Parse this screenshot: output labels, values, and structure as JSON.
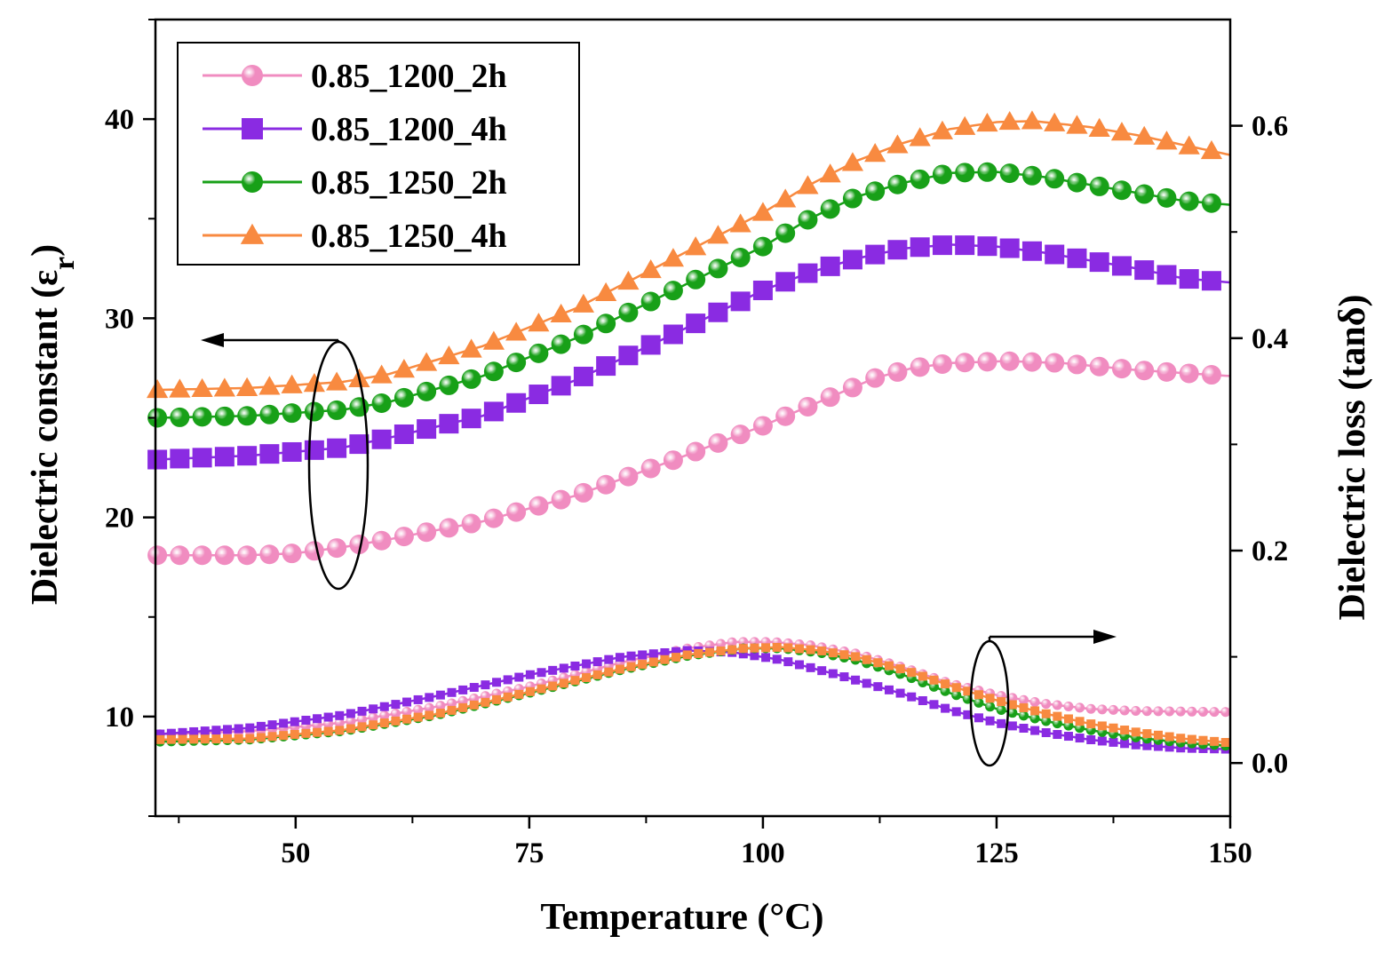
{
  "chart_data": {
    "type": "line",
    "title": "",
    "xlabel": "Temperature (°C)",
    "ylabel": "Dielectric constant (ε",
    "ylabel_sub": "r",
    "ylabel_close": ")",
    "y2label": "Dielectric loss (tanδ)",
    "xlim": [
      35,
      150
    ],
    "ylim": [
      5,
      45
    ],
    "y2lim": [
      -0.05,
      0.7
    ],
    "x_ticks": [
      50,
      75,
      100,
      125,
      150
    ],
    "x_tick_labels": [
      "50",
      "75",
      "100",
      "125",
      "150"
    ],
    "y_ticks": [
      10,
      20,
      30,
      40
    ],
    "y_tick_labels": [
      "10",
      "20",
      "30",
      "40"
    ],
    "y2_ticks": [
      0.0,
      0.2,
      0.4,
      0.6
    ],
    "y2_tick_labels": [
      "0.0",
      "0.2",
      "0.4",
      "0.6"
    ],
    "legend_position": "top-left",
    "series": [
      {
        "name": "0.85_1200_2h",
        "color": "#f08cc0",
        "marker": "circle",
        "eps_points": [
          [
            35,
            18.1
          ],
          [
            45,
            18.1
          ],
          [
            50,
            18.2
          ],
          [
            55,
            18.5
          ],
          [
            60,
            18.9
          ],
          [
            70,
            19.8
          ],
          [
            80,
            21.1
          ],
          [
            90,
            22.8
          ],
          [
            100,
            24.6
          ],
          [
            107,
            26.0
          ],
          [
            112,
            27.0
          ],
          [
            116,
            27.5
          ],
          [
            120,
            27.75
          ],
          [
            126,
            27.85
          ],
          [
            132,
            27.75
          ],
          [
            140,
            27.4
          ],
          [
            150,
            27.1
          ]
        ],
        "loss_points": [
          [
            35,
            0.027
          ],
          [
            45,
            0.03
          ],
          [
            55,
            0.038
          ],
          [
            65,
            0.053
          ],
          [
            75,
            0.072
          ],
          [
            85,
            0.095
          ],
          [
            92,
            0.108
          ],
          [
            97,
            0.114
          ],
          [
            101,
            0.114
          ],
          [
            105,
            0.111
          ],
          [
            110,
            0.103
          ],
          [
            115,
            0.09
          ],
          [
            120,
            0.075
          ],
          [
            125,
            0.064
          ],
          [
            130,
            0.056
          ],
          [
            135,
            0.051
          ],
          [
            140,
            0.049
          ],
          [
            150,
            0.048
          ]
        ]
      },
      {
        "name": "0.85_1200_4h",
        "color": "#8a2be2",
        "marker": "square",
        "eps_points": [
          [
            35,
            22.9
          ],
          [
            45,
            23.1
          ],
          [
            55,
            23.5
          ],
          [
            60,
            24.0
          ],
          [
            70,
            25.1
          ],
          [
            80,
            26.9
          ],
          [
            90,
            29.1
          ],
          [
            100,
            31.4
          ],
          [
            105,
            32.3
          ],
          [
            110,
            33.0
          ],
          [
            115,
            33.5
          ],
          [
            120,
            33.7
          ],
          [
            125,
            33.6
          ],
          [
            130,
            33.3
          ],
          [
            135,
            32.9
          ],
          [
            140,
            32.5
          ],
          [
            145,
            32.0
          ],
          [
            150,
            31.8
          ]
        ],
        "loss_points": [
          [
            35,
            0.027
          ],
          [
            45,
            0.033
          ],
          [
            55,
            0.045
          ],
          [
            65,
            0.063
          ],
          [
            75,
            0.083
          ],
          [
            85,
            0.1
          ],
          [
            92,
            0.106
          ],
          [
            97,
            0.104
          ],
          [
            102,
            0.097
          ],
          [
            108,
            0.083
          ],
          [
            115,
            0.065
          ],
          [
            120,
            0.05
          ],
          [
            125,
            0.038
          ],
          [
            130,
            0.029
          ],
          [
            135,
            0.022
          ],
          [
            140,
            0.017
          ],
          [
            145,
            0.014
          ],
          [
            150,
            0.013
          ]
        ]
      },
      {
        "name": "0.85_1250_2h",
        "color": "#18a018",
        "marker": "circle",
        "eps_points": [
          [
            35,
            25.0
          ],
          [
            45,
            25.1
          ],
          [
            55,
            25.4
          ],
          [
            60,
            25.8
          ],
          [
            70,
            27.1
          ],
          [
            80,
            29.0
          ],
          [
            90,
            31.3
          ],
          [
            100,
            33.6
          ],
          [
            105,
            35.0
          ],
          [
            110,
            36.1
          ],
          [
            115,
            36.8
          ],
          [
            120,
            37.3
          ],
          [
            125,
            37.35
          ],
          [
            130,
            37.1
          ],
          [
            135,
            36.7
          ],
          [
            140,
            36.3
          ],
          [
            145,
            35.9
          ],
          [
            150,
            35.7
          ]
        ],
        "loss_points": [
          [
            35,
            0.02
          ],
          [
            45,
            0.022
          ],
          [
            55,
            0.03
          ],
          [
            65,
            0.045
          ],
          [
            75,
            0.066
          ],
          [
            85,
            0.088
          ],
          [
            92,
            0.101
          ],
          [
            98,
            0.108
          ],
          [
            102,
            0.108
          ],
          [
            106,
            0.104
          ],
          [
            110,
            0.097
          ],
          [
            115,
            0.083
          ],
          [
            120,
            0.066
          ],
          [
            125,
            0.051
          ],
          [
            130,
            0.04
          ],
          [
            135,
            0.031
          ],
          [
            140,
            0.024
          ],
          [
            145,
            0.019
          ],
          [
            150,
            0.016
          ]
        ]
      },
      {
        "name": "0.85_1250_4h",
        "color": "#f88a40",
        "marker": "triangle",
        "eps_points": [
          [
            35,
            26.4
          ],
          [
            45,
            26.5
          ],
          [
            55,
            26.8
          ],
          [
            60,
            27.2
          ],
          [
            70,
            28.6
          ],
          [
            80,
            30.5
          ],
          [
            90,
            32.9
          ],
          [
            100,
            35.3
          ],
          [
            105,
            36.7
          ],
          [
            110,
            37.9
          ],
          [
            115,
            38.8
          ],
          [
            120,
            39.5
          ],
          [
            125,
            39.85
          ],
          [
            129,
            39.9
          ],
          [
            135,
            39.6
          ],
          [
            140,
            39.2
          ],
          [
            145,
            38.7
          ],
          [
            150,
            38.2
          ]
        ],
        "loss_points": [
          [
            35,
            0.022
          ],
          [
            45,
            0.023
          ],
          [
            55,
            0.031
          ],
          [
            65,
            0.046
          ],
          [
            75,
            0.067
          ],
          [
            85,
            0.089
          ],
          [
            92,
            0.102
          ],
          [
            98,
            0.108
          ],
          [
            102,
            0.109
          ],
          [
            106,
            0.106
          ],
          [
            110,
            0.1
          ],
          [
            115,
            0.088
          ],
          [
            120,
            0.073
          ],
          [
            125,
            0.059
          ],
          [
            130,
            0.047
          ],
          [
            135,
            0.037
          ],
          [
            140,
            0.029
          ],
          [
            145,
            0.023
          ],
          [
            150,
            0.019
          ]
        ]
      }
    ]
  }
}
